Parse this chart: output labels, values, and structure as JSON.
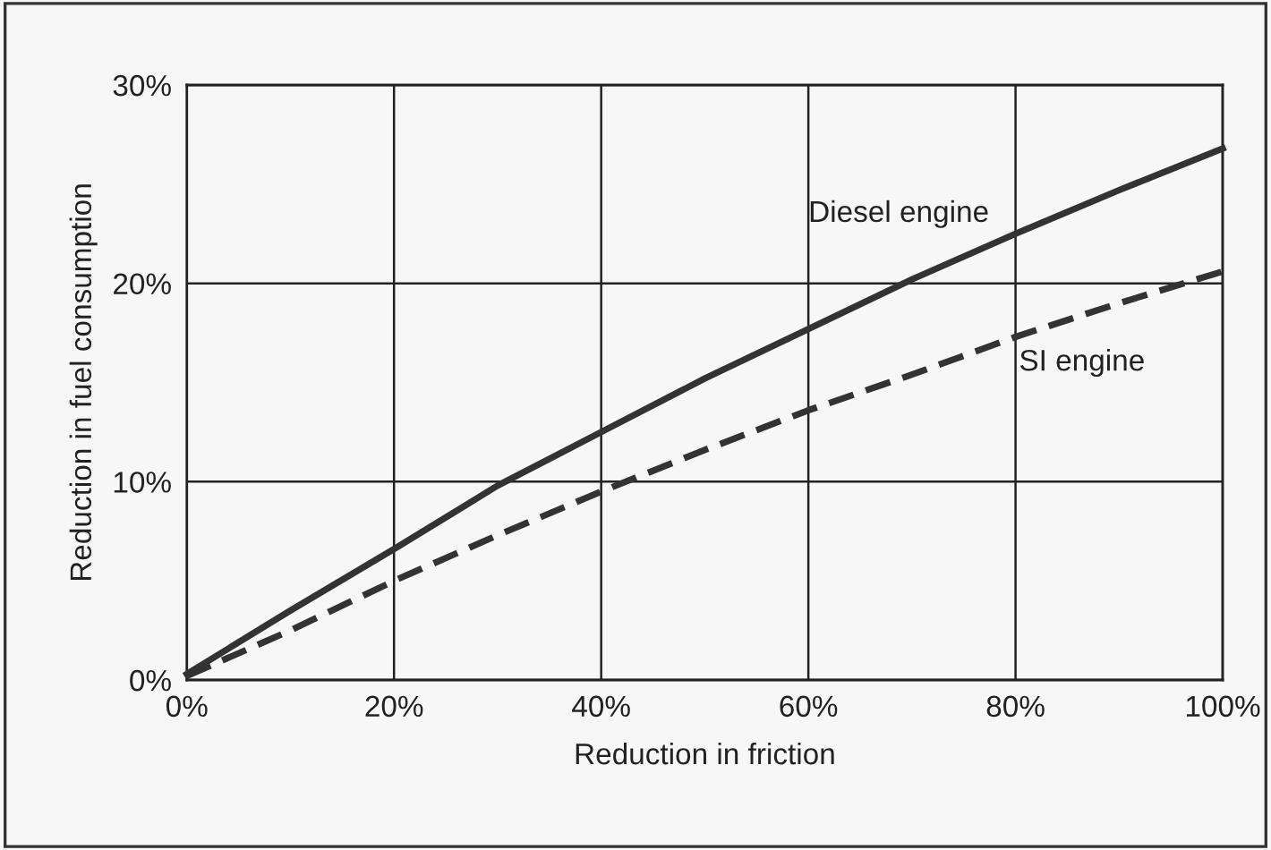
{
  "chart_data": {
    "type": "line",
    "xlabel": "Reduction in friction",
    "ylabel": "Reduction in fuel consumption",
    "xlim": [
      0,
      100
    ],
    "ylim": [
      0,
      30
    ],
    "xticks": [
      {
        "value": 0,
        "label": "0%"
      },
      {
        "value": 20,
        "label": "20%"
      },
      {
        "value": 40,
        "label": "40%"
      },
      {
        "value": 60,
        "label": "60%"
      },
      {
        "value": 80,
        "label": "80%"
      },
      {
        "value": 100,
        "label": "100%"
      }
    ],
    "yticks": [
      {
        "value": 0,
        "label": "0%"
      },
      {
        "value": 10,
        "label": "10%"
      },
      {
        "value": 20,
        "label": "20%"
      },
      {
        "value": 30,
        "label": "30%"
      }
    ],
    "grid": true,
    "legend": false,
    "marker": "none",
    "series": [
      {
        "name": "Diesel engine",
        "color": "#333333",
        "line_style": "solid",
        "x": [
          0,
          10,
          20,
          30,
          40,
          50,
          60,
          70,
          80,
          90,
          100
        ],
        "values": [
          0.3,
          3.5,
          6.6,
          9.8,
          12.5,
          15.2,
          17.7,
          20.2,
          22.5,
          24.7,
          26.8
        ]
      },
      {
        "name": "SI engine",
        "color": "#333333",
        "line_style": "dashed",
        "x": [
          0,
          10,
          20,
          30,
          40,
          50,
          60,
          70,
          80,
          90,
          100
        ],
        "values": [
          0.2,
          2.5,
          5.0,
          7.3,
          9.5,
          11.6,
          13.6,
          15.4,
          17.3,
          19.0,
          20.6
        ]
      }
    ]
  }
}
